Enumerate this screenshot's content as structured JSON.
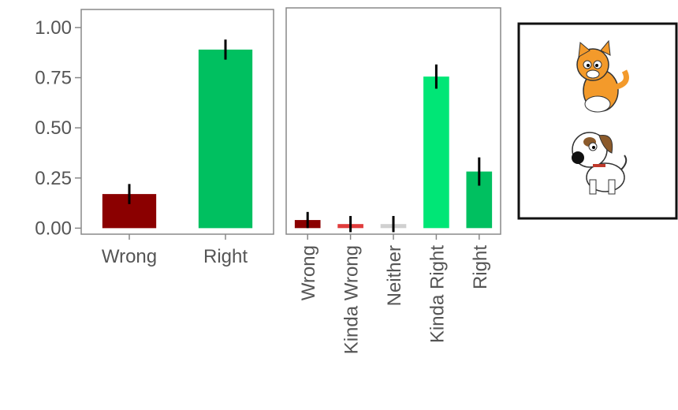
{
  "chart_data": [
    {
      "type": "bar",
      "categories": [
        "Wrong",
        "Right"
      ],
      "values": [
        0.17,
        0.89
      ],
      "errors": [
        0.05,
        0.05
      ],
      "colors": [
        "#8b0000",
        "#00c060"
      ],
      "ylim": [
        -0.03,
        1.09
      ],
      "yticks": [
        {
          "value": 0,
          "label": "0.00"
        },
        {
          "value": 0.25,
          "label": "0.25"
        },
        {
          "value": 0.5,
          "label": "0.50"
        },
        {
          "value": 0.75,
          "label": "0.75"
        },
        {
          "value": 1,
          "label": "1.00"
        }
      ]
    },
    {
      "type": "bar",
      "categories": [
        "Wrong",
        "Kinda Wrong",
        "Neither",
        "Kinda Right",
        "Right"
      ],
      "values": [
        0.04,
        0.02,
        0.02,
        0.75,
        0.28
      ],
      "errors": [
        0.04,
        0.04,
        0.04,
        0.06,
        0.07
      ],
      "colors": [
        "#8b0000",
        "#e03c3c",
        "#d0d0d0",
        "#00e676",
        "#00c060"
      ],
      "ylim": [
        -0.03,
        1.09
      ]
    }
  ]
}
